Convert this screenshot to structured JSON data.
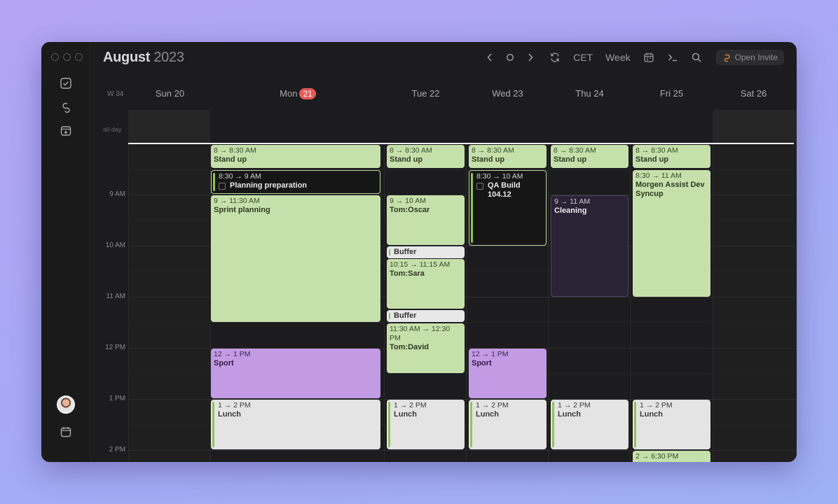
{
  "window": {
    "month": "August",
    "year": "2023"
  },
  "toolbar": {
    "timezone": "CET",
    "view": "Week",
    "invite_label": "Open Invite"
  },
  "week_label": "W 34",
  "days": [
    {
      "label": "Sun 20"
    },
    {
      "label": "Mon",
      "badge": "21"
    },
    {
      "label": "Tue 22"
    },
    {
      "label": "Wed 23"
    },
    {
      "label": "Thu 24"
    },
    {
      "label": "Fri 25"
    },
    {
      "label": "Sat 26"
    }
  ],
  "allday_label": "all-day",
  "hours": [
    "9 AM",
    "10 AM",
    "11 AM",
    "12 PM",
    "1 PM",
    "2 PM"
  ],
  "events": {
    "mon_standup": {
      "time": "8 → 8:30 AM",
      "name": "Stand up"
    },
    "mon_planning_prep": {
      "time": "8:30 → 9 AM",
      "name": "Planning preparation"
    },
    "mon_sprint": {
      "time": "9 → 11:30 AM",
      "name": "Sprint planning"
    },
    "mon_sport": {
      "time": "12 → 1 PM",
      "name": "Sport"
    },
    "mon_lunch": {
      "time": "1 → 2 PM",
      "name": "Lunch"
    },
    "tue_standup": {
      "time": "8 → 8:30 AM",
      "name": "Stand up"
    },
    "tue_oscar": {
      "time": "9 → 10 AM",
      "name": "Tom:Oscar"
    },
    "tue_buffer1": {
      "name": "Buffer"
    },
    "tue_sara": {
      "time": "10:15 → 11:15 AM",
      "name": "Tom:Sara"
    },
    "tue_buffer2": {
      "name": "Buffer"
    },
    "tue_david": {
      "time": "11:30 AM → 12:30 PM",
      "name": "Tom:David"
    },
    "tue_lunch": {
      "time": "1 → 2 PM",
      "name": "Lunch"
    },
    "wed_standup": {
      "time": "8 → 8:30 AM",
      "name": "Stand up"
    },
    "wed_qa": {
      "time": "8:30 → 10 AM",
      "name": "QA Build 104.12"
    },
    "wed_sport": {
      "time": "12 → 1 PM",
      "name": "Sport"
    },
    "wed_lunch": {
      "time": "1 → 2 PM",
      "name": "Lunch"
    },
    "thu_standup": {
      "time": "8 → 8:30 AM",
      "name": "Stand up"
    },
    "thu_cleaning": {
      "time": "9 → 11 AM",
      "name": "Cleaning"
    },
    "thu_lunch": {
      "time": "1 → 2 PM",
      "name": "Lunch"
    },
    "fri_standup": {
      "time": "8 → 8:30 AM",
      "name": "Stand up"
    },
    "fri_morgen": {
      "time": "8:30 → 11 AM",
      "name": "Morgen Assist Dev Syncup"
    },
    "fri_lunch": {
      "time": "1 → 2 PM",
      "name": "Lunch"
    },
    "fri_late": {
      "time": "2 → 6:30 PM"
    }
  }
}
